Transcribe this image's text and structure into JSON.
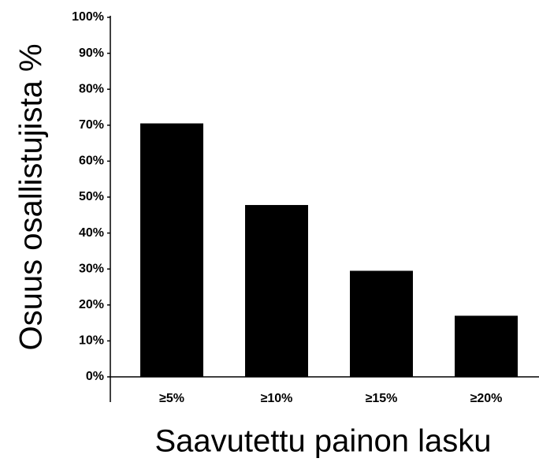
{
  "chart_data": {
    "type": "bar",
    "xlabel": "Saavutettu painon lasku",
    "ylabel": "Osuus osallistujista %",
    "categories": [
      "≥5%",
      "≥10%",
      "≥15%",
      "≥20%"
    ],
    "values": [
      70.5,
      47.8,
      29.5,
      17
    ],
    "color": "#000000",
    "ylim": [
      0,
      100
    ],
    "yticks": [
      {
        "value": 0,
        "label": "0%"
      },
      {
        "value": 10,
        "label": "10%"
      },
      {
        "value": 20,
        "label": "20%"
      },
      {
        "value": 30,
        "label": "30%"
      },
      {
        "value": 40,
        "label": "40%"
      },
      {
        "value": 50,
        "label": "50%"
      },
      {
        "value": 60,
        "label": "60%"
      },
      {
        "value": 70,
        "label": "70%"
      },
      {
        "value": 80,
        "label": "80%"
      },
      {
        "value": 90,
        "label": "90%"
      },
      {
        "value": 100,
        "label": "100%"
      }
    ],
    "grid": false
  }
}
